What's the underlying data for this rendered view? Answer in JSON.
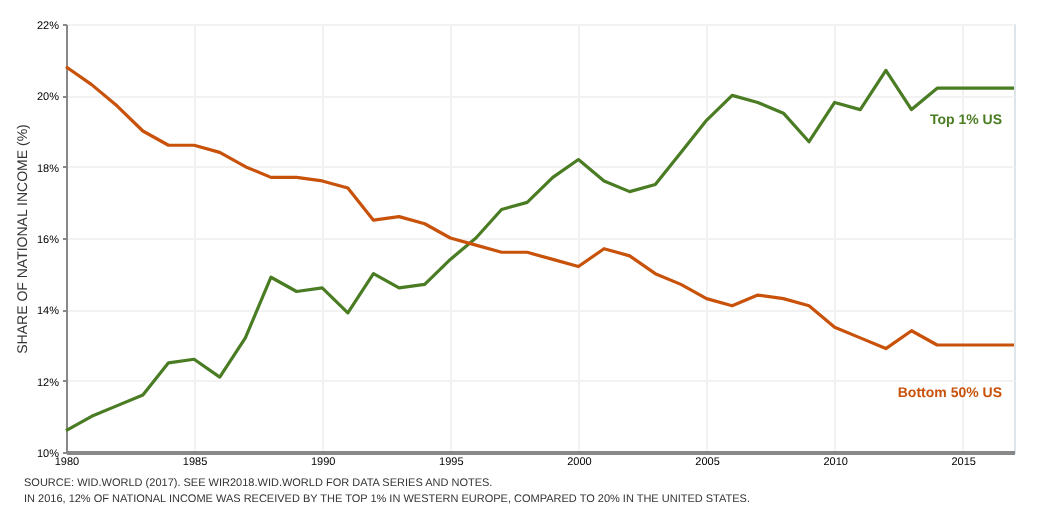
{
  "chart_data": {
    "type": "line",
    "ylabel": "SHARE OF NATIONAL INCOME (%)",
    "x": [
      1980,
      1981,
      1982,
      1983,
      1984,
      1985,
      1986,
      1987,
      1988,
      1989,
      1990,
      1991,
      1992,
      1993,
      1994,
      1995,
      1996,
      1997,
      1998,
      1999,
      2000,
      2001,
      2002,
      2003,
      2004,
      2005,
      2006,
      2007,
      2008,
      2009,
      2010,
      2011,
      2012,
      2013,
      2014,
      2015,
      2016,
      2017
    ],
    "series": [
      {
        "name": "Top 1% US",
        "color": "#4a7c23",
        "values": [
          10.6,
          11.0,
          11.3,
          11.6,
          12.5,
          12.6,
          12.1,
          13.2,
          14.9,
          14.5,
          14.6,
          13.9,
          15.0,
          14.6,
          14.7,
          15.4,
          16.0,
          16.8,
          17.0,
          17.7,
          18.2,
          17.6,
          17.3,
          17.5,
          18.4,
          19.3,
          20.0,
          19.8,
          19.5,
          18.7,
          19.8,
          19.6,
          20.7,
          19.6,
          20.2,
          20.2,
          20.2,
          20.2
        ]
      },
      {
        "name": "Bottom 50% US",
        "color": "#c8520a",
        "values": [
          20.8,
          20.3,
          19.7,
          19.0,
          18.6,
          18.6,
          18.4,
          18.0,
          17.7,
          17.7,
          17.6,
          17.4,
          16.5,
          16.6,
          16.4,
          16.0,
          15.8,
          15.6,
          15.6,
          15.4,
          15.2,
          15.7,
          15.5,
          15.0,
          14.7,
          14.3,
          14.1,
          14.4,
          14.3,
          14.1,
          13.5,
          13.2,
          12.9,
          13.4,
          13.0,
          13.0,
          13.0,
          13.0
        ]
      }
    ],
    "xlim": [
      1980,
      2017
    ],
    "xticks": [
      1980,
      1985,
      1990,
      1995,
      2000,
      2005,
      2010,
      2015
    ],
    "ylim": [
      10,
      22
    ],
    "yticks": [
      {
        "value": 10,
        "label": "10%"
      },
      {
        "value": 12,
        "label": "12%"
      },
      {
        "value": 14,
        "label": "14%"
      },
      {
        "value": 16,
        "label": "16%"
      },
      {
        "value": 18,
        "label": "18%"
      },
      {
        "value": 20,
        "label": "20%"
      },
      {
        "value": 22,
        "label": "22%"
      }
    ],
    "grid": true,
    "legend": false,
    "line_style": "solid",
    "marker": "none",
    "annotations": [
      "SOURCE: WID.WORLD (2017). SEE WIR2018.WID.WORLD FOR DATA SERIES AND NOTES.",
      "IN 2016, 12% OF NATIONAL INCOME WAS RECEIVED BY THE TOP 1% IN WESTERN EUROPE, COMPARED TO 20% IN THE UNITED STATES."
    ]
  }
}
